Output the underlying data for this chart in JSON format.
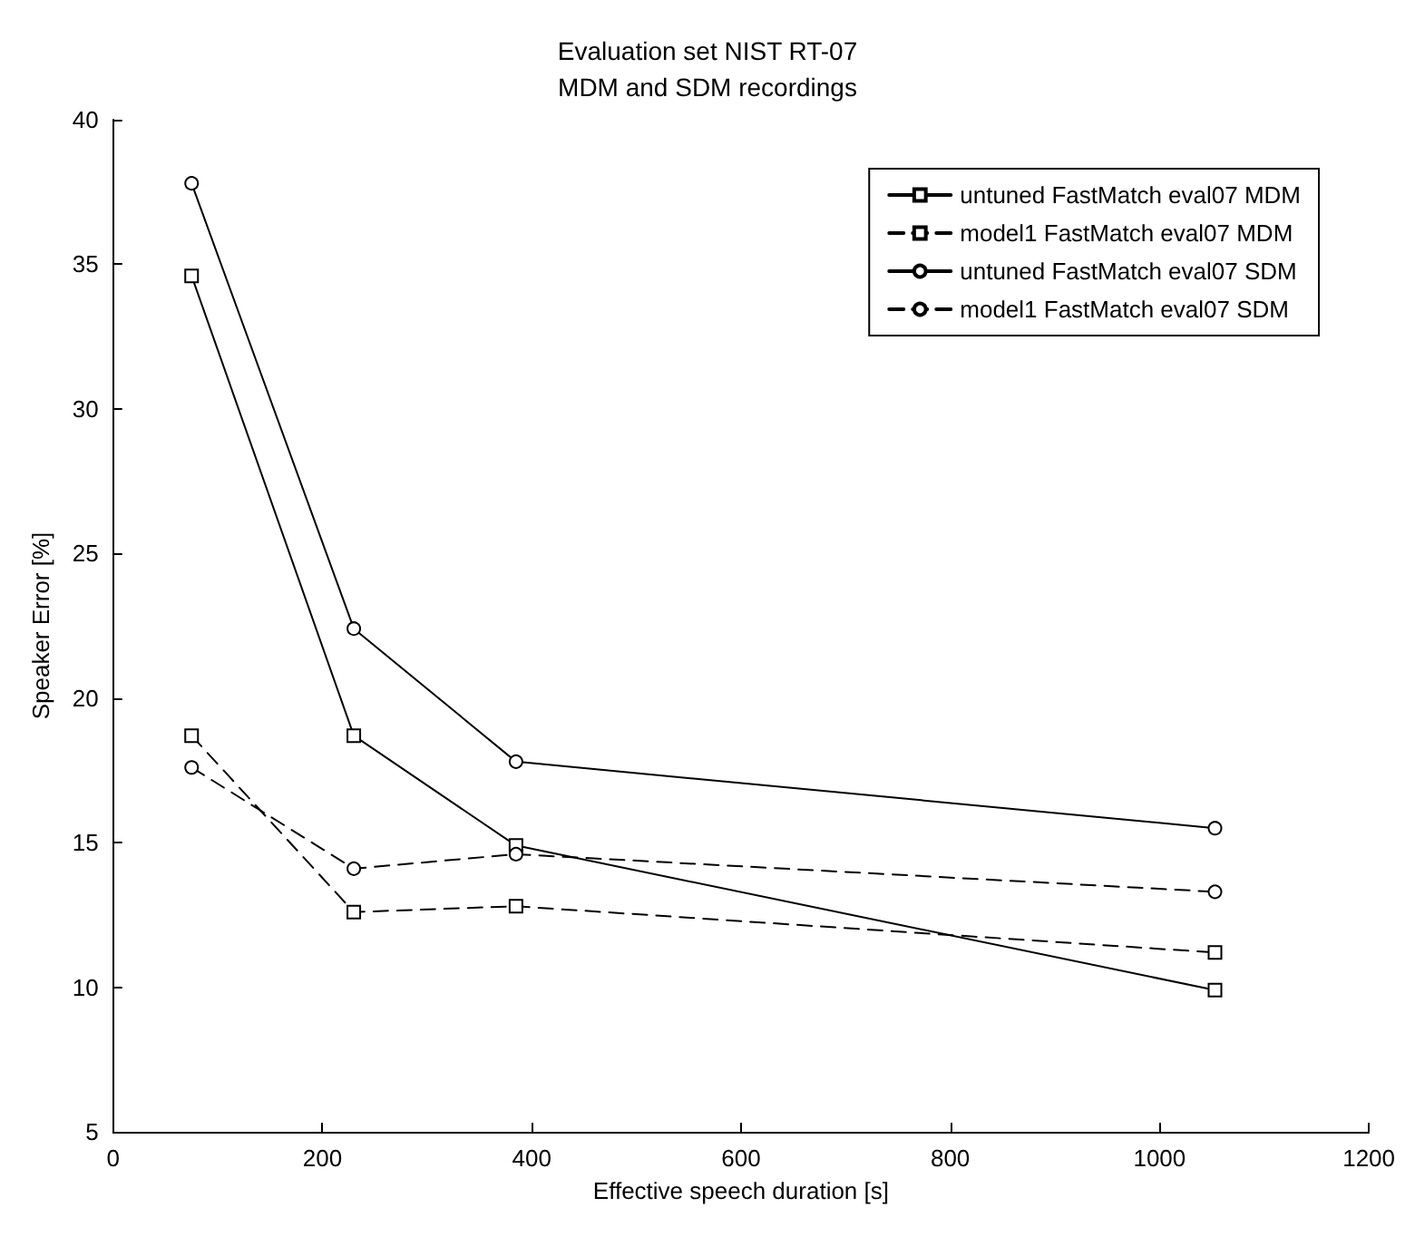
{
  "chart_data": {
    "type": "line",
    "title": "Evaluation set NIST RT-07",
    "subtitle": "MDM and SDM recordings",
    "xlabel": "Effective speech duration [s]",
    "ylabel": "Speaker Error [%]",
    "x": [
      75,
      230,
      385,
      1053
    ],
    "series": [
      {
        "name": "untuned FastMatch eval07 MDM",
        "color": "#000000",
        "values": [
          34.6,
          18.7,
          14.9,
          9.9
        ],
        "marker": "square",
        "line_style": "solid"
      },
      {
        "name": "model1 FastMatch eval07 MDM",
        "color": "#000000",
        "values": [
          18.7,
          12.6,
          12.8,
          11.2
        ],
        "marker": "square",
        "line_style": "dashed"
      },
      {
        "name": "untuned FastMatch eval07 SDM",
        "color": "#000000",
        "values": [
          37.8,
          22.4,
          17.8,
          15.5
        ],
        "marker": "circle",
        "line_style": "solid"
      },
      {
        "name": "model1 FastMatch eval07 SDM",
        "color": "#000000",
        "values": [
          17.6,
          14.1,
          14.6,
          13.3
        ],
        "marker": "circle",
        "line_style": "dashed"
      }
    ],
    "xlim": [
      0,
      1200
    ],
    "xticks": [
      0,
      200,
      400,
      600,
      800,
      1000,
      1200
    ],
    "ylim": [
      5,
      40
    ],
    "yticks": [
      5,
      10,
      15,
      20,
      25,
      30,
      35,
      40
    ],
    "grid": false,
    "legend": "top right"
  }
}
